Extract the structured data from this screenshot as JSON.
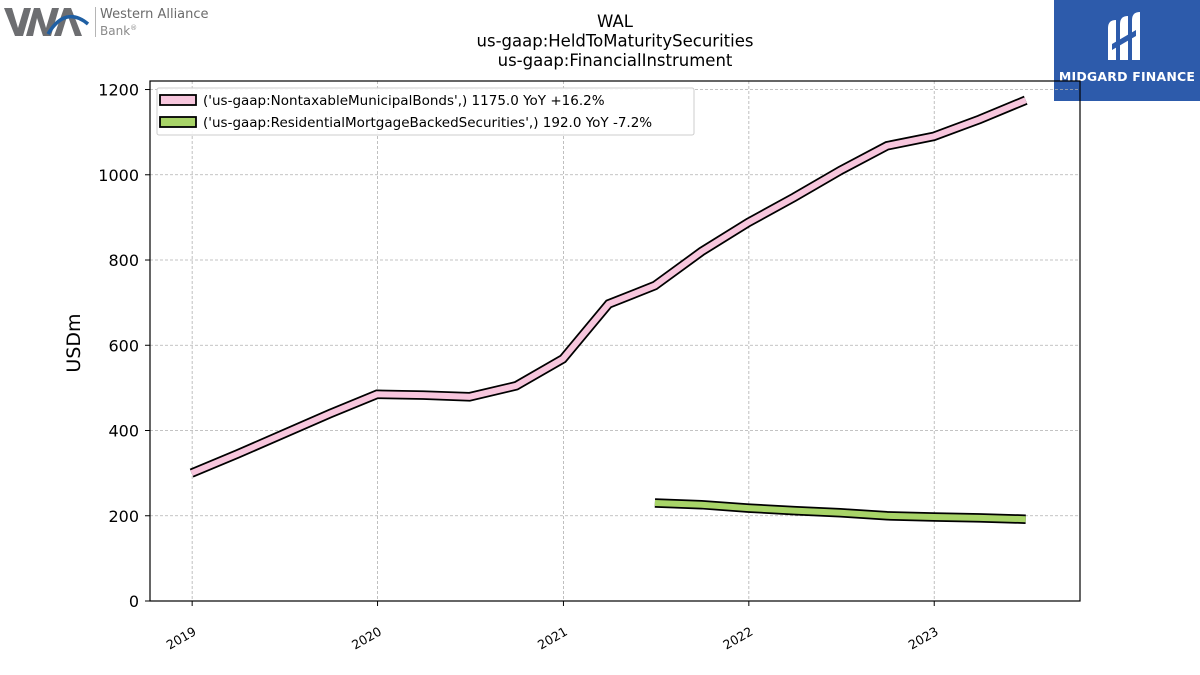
{
  "header": {
    "brand_left_line1": "Western Alliance",
    "brand_left_line2": "Bank",
    "brand_left_reg": "®",
    "brand_right": "MIDGARD FINANCE",
    "brand_right_color": "#2d5bab"
  },
  "chart_data": {
    "type": "line",
    "title_lines": [
      "WAL",
      "us-gaap:HeldToMaturitySecurities",
      "us-gaap:FinancialInstrument"
    ],
    "xlabel": "",
    "ylabel": "USDm",
    "ylim": [
      0,
      1220
    ],
    "yticks": [
      0,
      200,
      400,
      600,
      800,
      1000,
      1200
    ],
    "xticks": [
      "2019",
      "2020",
      "2021",
      "2022",
      "2023"
    ],
    "grid": true,
    "legend_placement": "top-left",
    "series": [
      {
        "name": "('us-gaap:NontaxableMunicipalBonds',) 1175.0 YoY +16.2%",
        "color": "#f7c6dd",
        "x": [
          "2018-12-31",
          "2019-03-31",
          "2019-06-30",
          "2019-09-30",
          "2019-12-31",
          "2020-03-31",
          "2020-06-30",
          "2020-09-30",
          "2020-12-31",
          "2021-03-31",
          "2021-06-30",
          "2021-09-30",
          "2021-12-31",
          "2022-03-31",
          "2022-06-30",
          "2022-09-30",
          "2022-12-31",
          "2023-03-31",
          "2023-06-30"
        ],
        "values": [
          300,
          345,
          392,
          440,
          485,
          483,
          479,
          505,
          568,
          697,
          740,
          820,
          888,
          947,
          1010,
          1068,
          1090,
          1130,
          1175
        ]
      },
      {
        "name": "('us-gaap:ResidentialMortgageBackedSecurities',) 192.0 YoY -7.2%",
        "color": "#a8d468",
        "x": [
          "2021-06-30",
          "2021-09-30",
          "2021-12-31",
          "2022-03-31",
          "2022-06-30",
          "2022-09-30",
          "2022-12-31",
          "2023-03-31",
          "2023-06-30"
        ],
        "values": [
          230,
          226,
          218,
          212,
          207,
          200,
          197,
          195,
          192
        ]
      }
    ]
  }
}
